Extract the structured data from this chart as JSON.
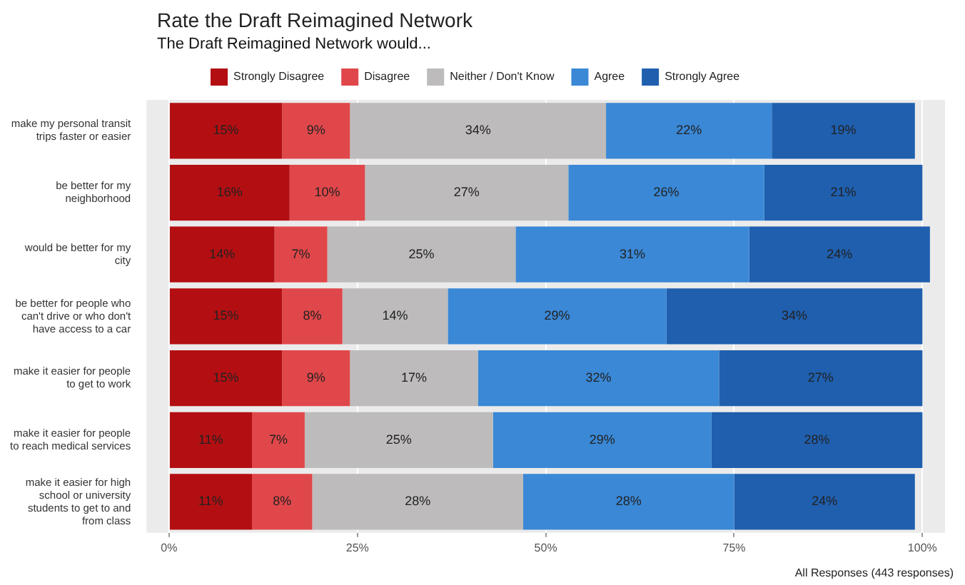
{
  "chart_data": {
    "type": "bar",
    "orientation": "horizontal",
    "stacked": true,
    "title": "Rate the Draft Reimagined Network",
    "subtitle": "The Draft Reimagined Network would...",
    "categories": [
      "make my personal transit trips faster or easier",
      "be better for my neighborhood",
      "would be better for my city",
      "be better for people who can't drive or who don't have access to a car",
      "make it easier for people to get to work",
      "make it easier for people to reach medical services",
      "make it easier for high school or university students to get to and from class"
    ],
    "series": [
      {
        "name": "Strongly Disagree",
        "color": "#b30f12",
        "values": [
          15,
          16,
          14,
          15,
          15,
          11,
          11
        ],
        "value_labels": [
          "15%",
          "16%",
          "14%",
          "15%",
          "15%",
          "11%",
          "11%"
        ]
      },
      {
        "name": "Disagree",
        "color": "#e0474a",
        "values": [
          9,
          10,
          7,
          8,
          9,
          7,
          8
        ],
        "value_labels": [
          "9%",
          "10%",
          "7%",
          "8%",
          "9%",
          "7%",
          "8%"
        ]
      },
      {
        "name": "Neither / Don't Know",
        "color": "#bdbbbb",
        "values": [
          34,
          27,
          25,
          14,
          17,
          25,
          28
        ],
        "value_labels": [
          "34%",
          "27%",
          "25%",
          "14%",
          "17%",
          "25%",
          "28%"
        ]
      },
      {
        "name": "Agree",
        "color": "#3a88d6",
        "values": [
          22,
          26,
          31,
          29,
          32,
          29,
          28
        ],
        "value_labels": [
          "22%",
          "26%",
          "31%",
          "29%",
          "32%",
          "29%",
          "28%"
        ]
      },
      {
        "name": "Strongly Agree",
        "color": "#1f5fae",
        "values": [
          19,
          21,
          24,
          34,
          27,
          28,
          24
        ],
        "value_labels": [
          "19%",
          "21%",
          "24%",
          "34%",
          "27%",
          "28%",
          "24%"
        ]
      }
    ],
    "xlim": [
      -3,
      103
    ],
    "xticks": [
      {
        "value": 0,
        "label": "0%"
      },
      {
        "value": 25,
        "label": "25%"
      },
      {
        "value": 50,
        "label": "50%"
      },
      {
        "value": 75,
        "label": "75%"
      },
      {
        "value": 100,
        "label": "100%"
      }
    ],
    "grid": "x",
    "legend": "top",
    "annotations": [
      "All Responses (443 responses)"
    ]
  }
}
